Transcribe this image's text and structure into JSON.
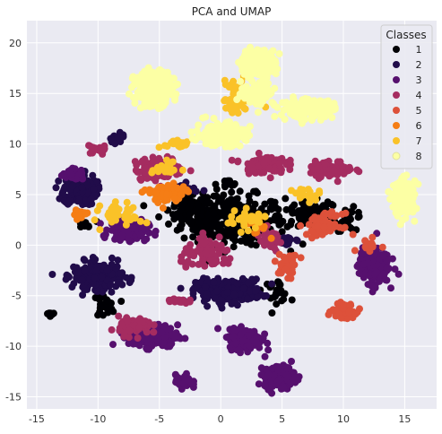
{
  "chart_data": {
    "type": "scatter",
    "title": "PCA and UMAP",
    "xlabel": "",
    "ylabel": "",
    "xlim": [
      -15.8,
      17.6
    ],
    "ylim": [
      -16.2,
      22.2
    ],
    "xticks": [
      -15,
      -10,
      -5,
      0,
      5,
      10,
      15
    ],
    "yticks": [
      -15,
      -10,
      -5,
      0,
      5,
      10,
      15,
      20
    ],
    "grid": true,
    "legend": {
      "title": "Classes",
      "placement": "top-right",
      "entries": [
        "1",
        "2",
        "3",
        "4",
        "5",
        "6",
        "7",
        "8"
      ]
    },
    "series": [
      {
        "name": "1",
        "color": "#000004",
        "clusters": [
          {
            "x": 1.0,
            "y": 2.5,
            "sx": 3.8,
            "sy": 2.2,
            "n": 320
          },
          {
            "x": -2.5,
            "y": 3.5,
            "sx": 1.6,
            "sy": 1.4,
            "n": 80
          },
          {
            "x": 7.5,
            "y": 3.0,
            "sx": 2.0,
            "sy": 1.2,
            "n": 80
          },
          {
            "x": 10.5,
            "y": 2.5,
            "sx": 1.0,
            "sy": 1.0,
            "n": 30
          },
          {
            "x": 4.5,
            "y": -4.5,
            "sx": 1.0,
            "sy": 1.0,
            "n": 25
          },
          {
            "x": -9.5,
            "y": -6.0,
            "sx": 0.8,
            "sy": 1.0,
            "n": 25
          },
          {
            "x": -14.0,
            "y": -6.8,
            "sx": 0.3,
            "sy": 0.2,
            "n": 8
          },
          {
            "x": -11.0,
            "y": 2.0,
            "sx": 0.8,
            "sy": 0.3,
            "n": 10
          },
          {
            "x": 0.5,
            "y": 6.0,
            "sx": 0.8,
            "sy": 0.4,
            "n": 15
          }
        ]
      },
      {
        "name": "2",
        "color": "#210c4a",
        "clusters": [
          {
            "x": -11.5,
            "y": 5.5,
            "sx": 1.2,
            "sy": 1.4,
            "n": 220
          },
          {
            "x": 0.7,
            "y": -4.5,
            "sx": 2.4,
            "sy": 1.0,
            "n": 260
          },
          {
            "x": -10.0,
            "y": -3.0,
            "sx": 1.8,
            "sy": 1.2,
            "n": 220
          },
          {
            "x": -8.5,
            "y": 10.5,
            "sx": 0.6,
            "sy": 0.4,
            "n": 25
          },
          {
            "x": -3.0,
            "y": 5.5,
            "sx": 1.0,
            "sy": 0.5,
            "n": 30
          },
          {
            "x": 5.5,
            "y": 0.5,
            "sx": 0.6,
            "sy": 0.6,
            "n": 15
          }
        ]
      },
      {
        "name": "3",
        "color": "#56106e",
        "clusters": [
          {
            "x": -7.5,
            "y": 1.5,
            "sx": 1.4,
            "sy": 0.9,
            "n": 180
          },
          {
            "x": -5.5,
            "y": -9.0,
            "sx": 1.8,
            "sy": 1.0,
            "n": 200
          },
          {
            "x": 2.0,
            "y": -9.3,
            "sx": 1.2,
            "sy": 0.9,
            "n": 180
          },
          {
            "x": 4.8,
            "y": -13.0,
            "sx": 1.1,
            "sy": 1.0,
            "n": 200
          },
          {
            "x": 12.5,
            "y": -2.0,
            "sx": 1.1,
            "sy": 1.6,
            "n": 200
          },
          {
            "x": -3.0,
            "y": -13.5,
            "sx": 0.6,
            "sy": 0.6,
            "n": 50
          },
          {
            "x": -12.0,
            "y": 7.0,
            "sx": 0.8,
            "sy": 0.5,
            "n": 40
          }
        ]
      },
      {
        "name": "4",
        "color": "#a52c60",
        "clusters": [
          {
            "x": -5.0,
            "y": 7.5,
            "sx": 1.8,
            "sy": 1.0,
            "n": 120
          },
          {
            "x": 3.5,
            "y": 8.0,
            "sx": 1.6,
            "sy": 0.8,
            "n": 100
          },
          {
            "x": 9.0,
            "y": 7.5,
            "sx": 1.6,
            "sy": 0.7,
            "n": 80
          },
          {
            "x": -7.0,
            "y": -8.0,
            "sx": 1.2,
            "sy": 0.8,
            "n": 80
          },
          {
            "x": -1.0,
            "y": -1.0,
            "sx": 2.0,
            "sy": 1.2,
            "n": 80
          },
          {
            "x": 4.0,
            "y": 0.5,
            "sx": 1.0,
            "sy": 1.0,
            "n": 40
          },
          {
            "x": -3.5,
            "y": -5.5,
            "sx": 0.8,
            "sy": 0.3,
            "n": 20
          },
          {
            "x": -10.0,
            "y": 9.5,
            "sx": 0.8,
            "sy": 0.5,
            "n": 20
          }
        ]
      },
      {
        "name": "5",
        "color": "#dd513a",
        "clusters": [
          {
            "x": 10.0,
            "y": -6.5,
            "sx": 0.8,
            "sy": 0.6,
            "n": 90
          },
          {
            "x": 8.5,
            "y": 2.0,
            "sx": 1.3,
            "sy": 1.0,
            "n": 60
          },
          {
            "x": 5.5,
            "y": -2.0,
            "sx": 0.8,
            "sy": 1.0,
            "n": 40
          },
          {
            "x": 12.0,
            "y": 0.0,
            "sx": 0.8,
            "sy": 0.5,
            "n": 20
          }
        ]
      },
      {
        "name": "6",
        "color": "#f57d15",
        "clusters": [
          {
            "x": -4.5,
            "y": 5.0,
            "sx": 1.5,
            "sy": 1.0,
            "n": 60
          },
          {
            "x": -11.5,
            "y": 3.0,
            "sx": 0.8,
            "sy": 0.5,
            "n": 15
          },
          {
            "x": 3.0,
            "y": 2.0,
            "sx": 0.8,
            "sy": 0.8,
            "n": 15
          }
        ]
      },
      {
        "name": "7",
        "color": "#fac228",
        "clusters": [
          {
            "x": 1.3,
            "y": 14.5,
            "sx": 1.0,
            "sy": 1.7,
            "n": 50
          },
          {
            "x": -8.0,
            "y": 3.0,
            "sx": 1.5,
            "sy": 1.0,
            "n": 40
          },
          {
            "x": -3.5,
            "y": 10.0,
            "sx": 1.0,
            "sy": 0.5,
            "n": 25
          },
          {
            "x": 2.0,
            "y": 2.5,
            "sx": 1.5,
            "sy": 0.8,
            "n": 35
          },
          {
            "x": -4.5,
            "y": 7.5,
            "sx": 1.0,
            "sy": 0.6,
            "n": 25
          },
          {
            "x": 7.0,
            "y": 5.0,
            "sx": 1.0,
            "sy": 0.6,
            "n": 20
          }
        ]
      },
      {
        "name": "8",
        "color": "#fcffa4",
        "clusters": [
          {
            "x": -5.5,
            "y": 15.5,
            "sx": 1.4,
            "sy": 1.5,
            "n": 280
          },
          {
            "x": 3.0,
            "y": 18.0,
            "sx": 1.3,
            "sy": 1.2,
            "n": 200
          },
          {
            "x": 0.0,
            "y": 11.0,
            "sx": 1.8,
            "sy": 1.0,
            "n": 220
          },
          {
            "x": 7.0,
            "y": 13.5,
            "sx": 2.0,
            "sy": 0.8,
            "n": 180
          },
          {
            "x": 3.0,
            "y": 15.0,
            "sx": 1.2,
            "sy": 1.0,
            "n": 100
          },
          {
            "x": 15.0,
            "y": 4.5,
            "sx": 0.8,
            "sy": 1.6,
            "n": 180
          }
        ]
      }
    ]
  }
}
